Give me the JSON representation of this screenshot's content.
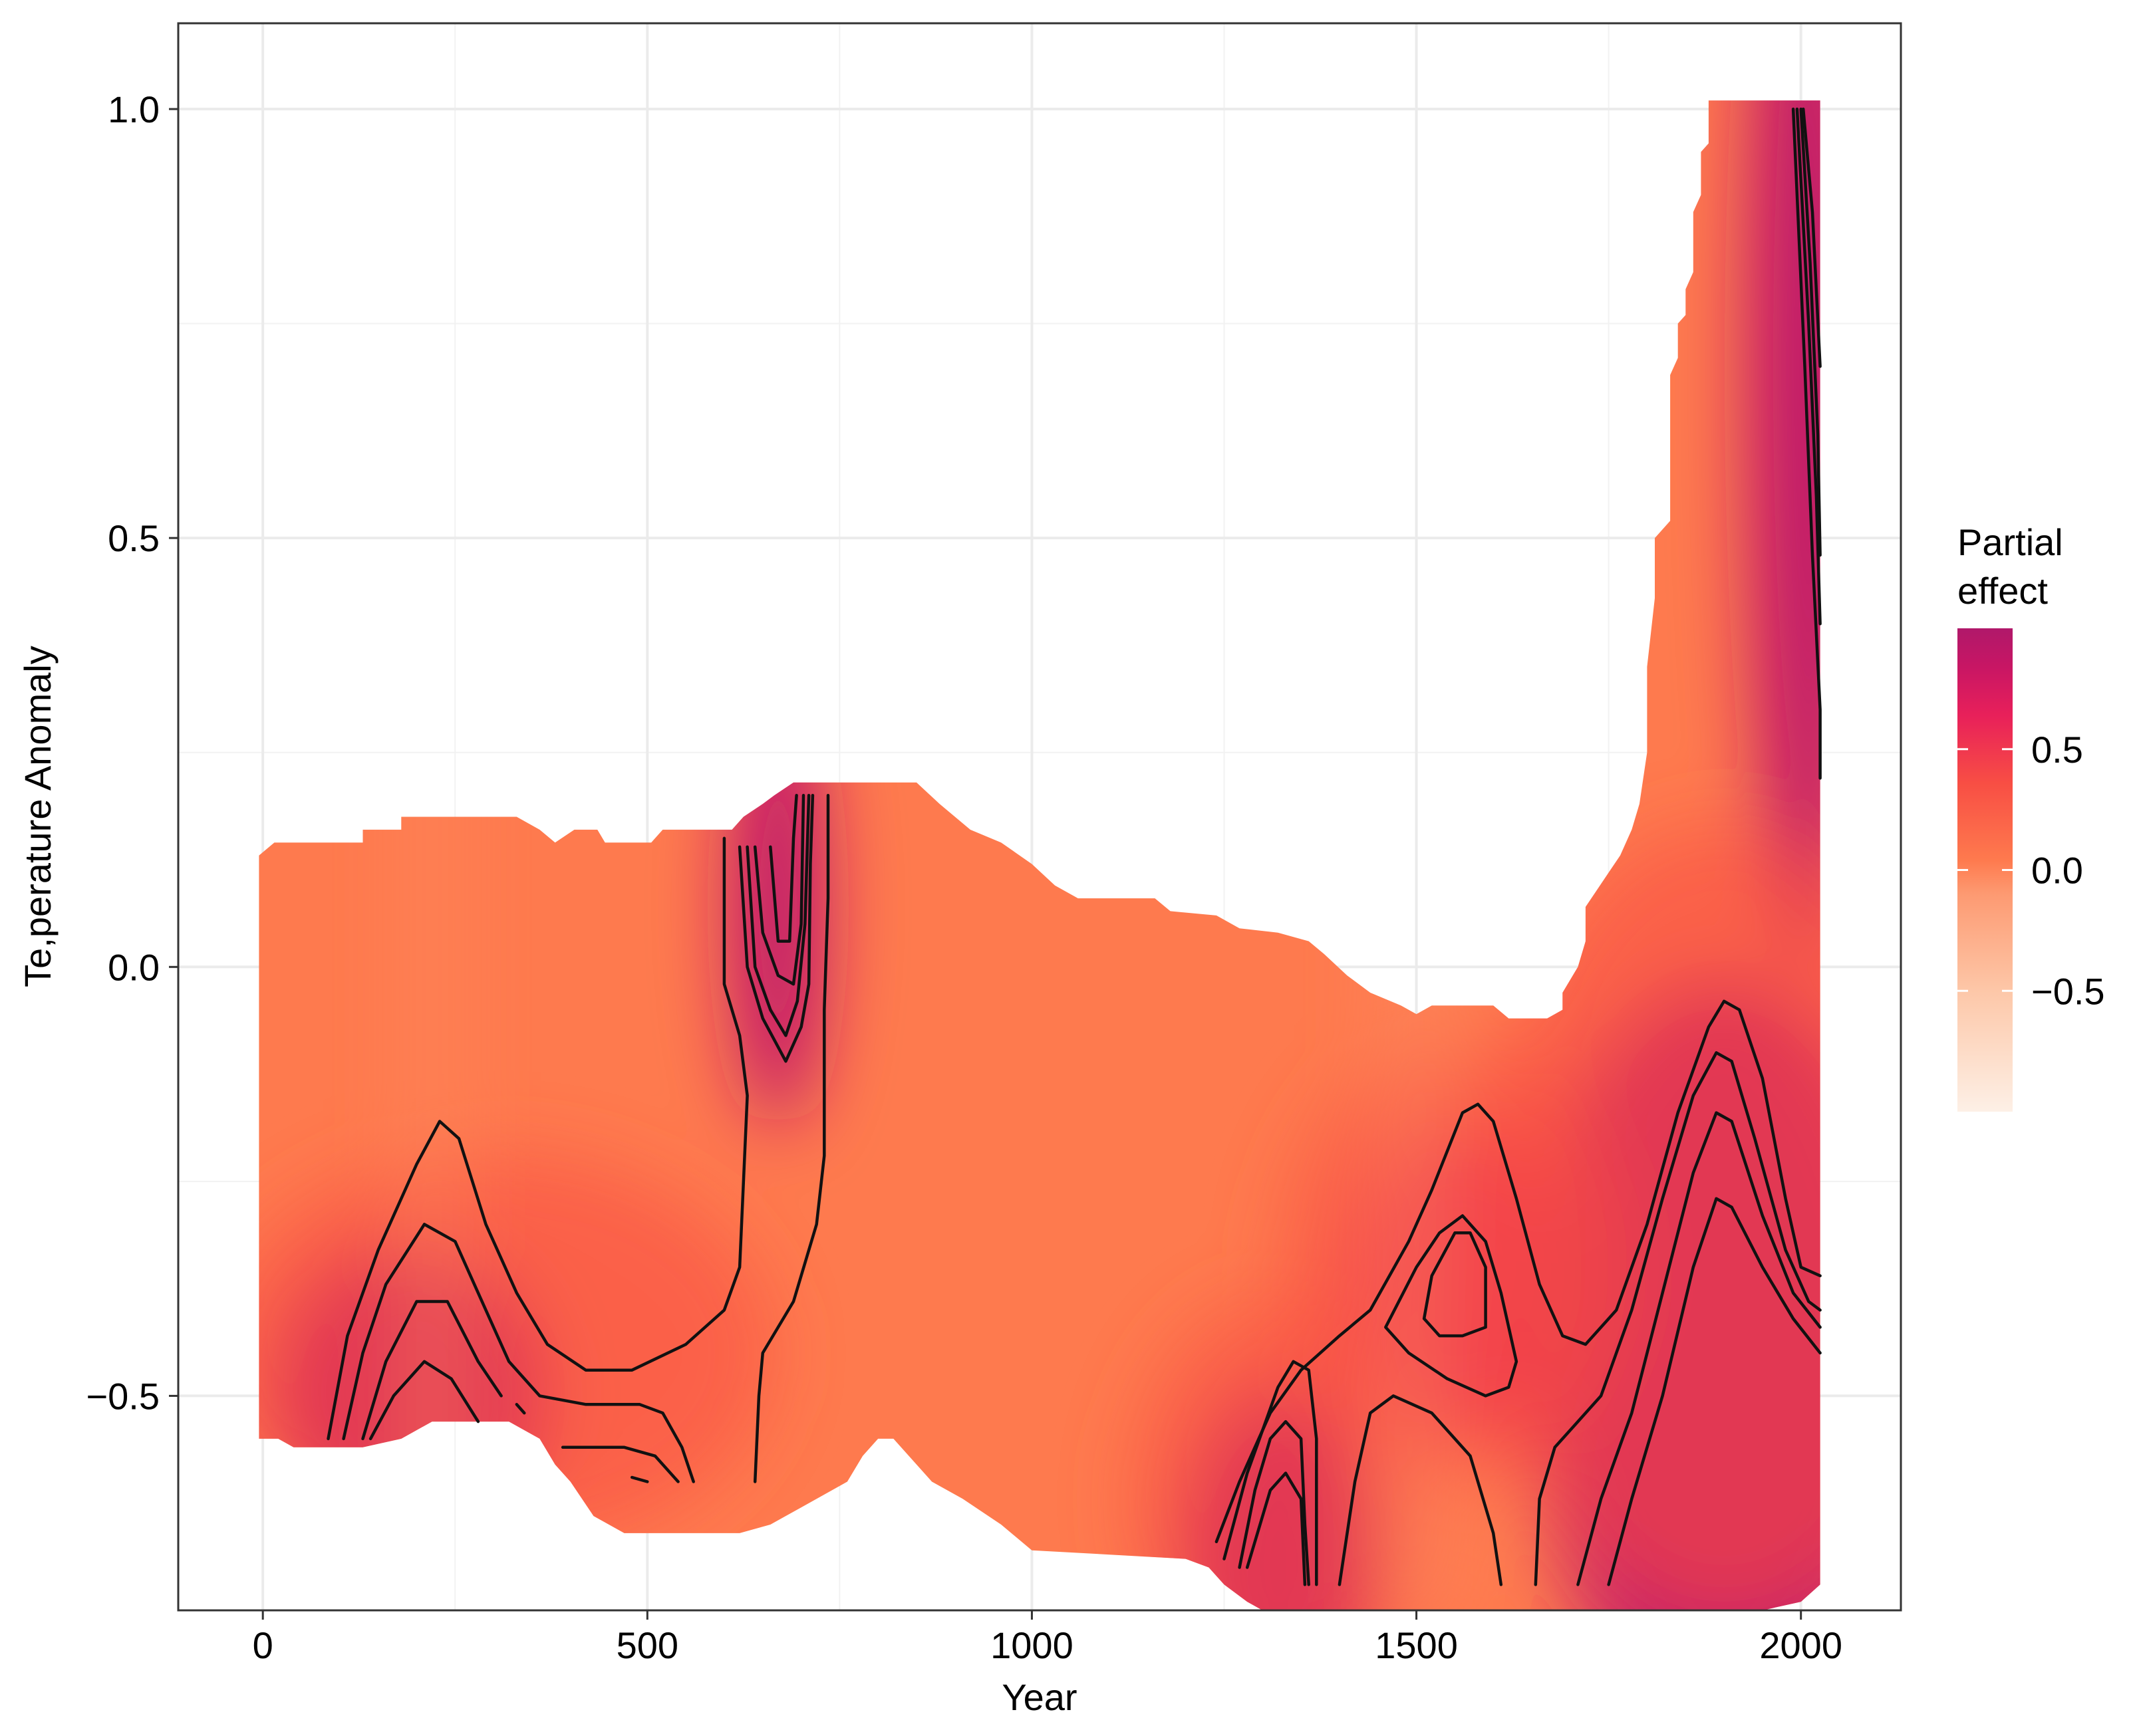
{
  "chart_data": {
    "type": "heatmap",
    "title": "",
    "xlabel": "Year",
    "ylabel": "Te,perature Anomaly",
    "xlim": [
      -110,
      2130
    ],
    "ylim": [
      -0.75,
      1.1
    ],
    "x_ticks": [
      0,
      500,
      1000,
      1500,
      2000
    ],
    "y_ticks": [
      -0.5,
      0.0,
      0.5,
      1.0
    ],
    "x_tick_labels": [
      "0",
      "500",
      "1000",
      "1500",
      "2000"
    ],
    "y_tick_labels": [
      "−0.5",
      "0.0",
      "0.5",
      "1.0"
    ],
    "grid": true,
    "legend": {
      "title": "Partial effect",
      "title_lines": [
        "Partial",
        "effect"
      ],
      "position": "right",
      "range": [
        -1.0,
        1.0
      ],
      "breaks": [
        0.5,
        0.0,
        -0.5
      ],
      "break_labels": [
        "0.5",
        "0.0",
        "−0.5"
      ],
      "colors": [
        "#fdf0e6",
        "#fdc7a8",
        "#fd9a72",
        "#fe7a4e",
        "#f84e44",
        "#e8205a",
        "#c81664",
        "#b0186a"
      ]
    },
    "data_extent": {
      "upper_boundary": [
        [
          -5,
          0.13
        ],
        [
          15,
          0.145
        ],
        [
          130,
          0.145
        ],
        [
          130,
          0.16
        ],
        [
          180,
          0.16
        ],
        [
          180,
          0.175
        ],
        [
          330,
          0.175
        ],
        [
          360,
          0.16
        ],
        [
          380,
          0.145
        ],
        [
          405,
          0.16
        ],
        [
          435,
          0.16
        ],
        [
          445,
          0.145
        ],
        [
          505,
          0.145
        ],
        [
          520,
          0.16
        ],
        [
          610,
          0.16
        ],
        [
          625,
          0.175
        ],
        [
          650,
          0.19
        ],
        [
          665,
          0.2
        ],
        [
          690,
          0.215
        ],
        [
          850,
          0.215
        ],
        [
          880,
          0.19
        ],
        [
          920,
          0.16
        ],
        [
          960,
          0.145
        ],
        [
          1000,
          0.12
        ],
        [
          1030,
          0.095
        ],
        [
          1060,
          0.08
        ],
        [
          1160,
          0.08
        ],
        [
          1180,
          0.065
        ],
        [
          1240,
          0.06
        ],
        [
          1270,
          0.045
        ],
        [
          1320,
          0.04
        ],
        [
          1360,
          0.03
        ],
        [
          1380,
          0.015
        ],
        [
          1410,
          -0.01
        ],
        [
          1440,
          -0.03
        ],
        [
          1480,
          -0.045
        ],
        [
          1500,
          -0.055
        ],
        [
          1520,
          -0.045
        ],
        [
          1600,
          -0.045
        ],
        [
          1620,
          -0.06
        ],
        [
          1670,
          -0.06
        ],
        [
          1690,
          -0.05
        ],
        [
          1690,
          -0.03
        ],
        [
          1710,
          0.0
        ],
        [
          1720,
          0.03
        ],
        [
          1720,
          0.07
        ],
        [
          1750,
          0.11
        ],
        [
          1765,
          0.13
        ],
        [
          1780,
          0.16
        ],
        [
          1790,
          0.19
        ],
        [
          1800,
          0.25
        ],
        [
          1800,
          0.35
        ],
        [
          1810,
          0.43
        ],
        [
          1810,
          0.5
        ],
        [
          1830,
          0.52
        ],
        [
          1830,
          0.69
        ],
        [
          1840,
          0.71
        ],
        [
          1840,
          0.75
        ],
        [
          1850,
          0.76
        ],
        [
          1850,
          0.79
        ],
        [
          1860,
          0.81
        ],
        [
          1860,
          0.88
        ],
        [
          1870,
          0.9
        ],
        [
          1870,
          0.95
        ],
        [
          1880,
          0.96
        ],
        [
          1880,
          1.01
        ],
        [
          2025,
          1.01
        ]
      ],
      "lower_boundary": [
        [
          2025,
          -0.72
        ],
        [
          2000,
          -0.74
        ],
        [
          1950,
          -0.75
        ],
        [
          1300,
          -0.75
        ],
        [
          1280,
          -0.74
        ],
        [
          1250,
          -0.72
        ],
        [
          1230,
          -0.7
        ],
        [
          1200,
          -0.69
        ],
        [
          1000,
          -0.68
        ],
        [
          960,
          -0.65
        ],
        [
          910,
          -0.62
        ],
        [
          870,
          -0.6
        ],
        [
          820,
          -0.55
        ],
        [
          800,
          -0.55
        ],
        [
          780,
          -0.57
        ],
        [
          760,
          -0.6
        ],
        [
          700,
          -0.63
        ],
        [
          680,
          -0.64
        ],
        [
          660,
          -0.65
        ],
        [
          620,
          -0.66
        ],
        [
          470,
          -0.66
        ],
        [
          430,
          -0.64
        ],
        [
          400,
          -0.6
        ],
        [
          380,
          -0.58
        ],
        [
          360,
          -0.55
        ],
        [
          320,
          -0.53
        ],
        [
          220,
          -0.53
        ],
        [
          180,
          -0.55
        ],
        [
          130,
          -0.56
        ],
        [
          40,
          -0.56
        ],
        [
          20,
          -0.55
        ],
        [
          -5,
          -0.55
        ]
      ]
    },
    "high_effect_regions": [
      {
        "center": [
          190,
          -0.5
        ],
        "value": 1.0
      },
      {
        "center": [
          670,
          0.07
        ],
        "value": 1.0
      },
      {
        "center": [
          1550,
          -0.37
        ],
        "value": 0.85
      },
      {
        "center": [
          1320,
          -0.7
        ],
        "value": 1.0
      },
      {
        "center": [
          1900,
          -0.45
        ],
        "value": 1.0
      },
      {
        "center": [
          2010,
          0.7
        ],
        "value": 1.0
      }
    ],
    "contours": [
      [
        [
          85,
          -0.55
        ],
        [
          110,
          -0.43
        ],
        [
          150,
          -0.33
        ],
        [
          200,
          -0.23
        ],
        [
          230,
          -0.18
        ],
        [
          255,
          -0.2
        ],
        [
          290,
          -0.3
        ],
        [
          330,
          -0.38
        ],
        [
          370,
          -0.44
        ],
        [
          420,
          -0.47
        ],
        [
          480,
          -0.47
        ],
        [
          550,
          -0.44
        ],
        [
          600,
          -0.4
        ],
        [
          620,
          -0.35
        ],
        [
          630,
          -0.15
        ],
        [
          620,
          -0.08
        ],
        [
          600,
          -0.02
        ],
        [
          600,
          0.15
        ]
      ],
      [
        [
          105,
          -0.55
        ],
        [
          130,
          -0.45
        ],
        [
          160,
          -0.37
        ],
        [
          210,
          -0.3
        ],
        [
          250,
          -0.32
        ],
        [
          280,
          -0.38
        ],
        [
          320,
          -0.46
        ],
        [
          360,
          -0.5
        ],
        [
          420,
          -0.51
        ],
        [
          490,
          -0.51
        ],
        [
          520,
          -0.52
        ],
        [
          545,
          -0.56
        ],
        [
          560,
          -0.6
        ]
      ],
      [
        [
          130,
          -0.55
        ],
        [
          160,
          -0.46
        ],
        [
          200,
          -0.39
        ],
        [
          240,
          -0.39
        ],
        [
          280,
          -0.46
        ],
        [
          310,
          -0.5
        ]
      ],
      [
        [
          140,
          -0.55
        ],
        [
          170,
          -0.5
        ],
        [
          210,
          -0.46
        ],
        [
          245,
          -0.48
        ],
        [
          280,
          -0.53
        ]
      ],
      [
        [
          330,
          -0.51
        ],
        [
          340,
          -0.52
        ]
      ],
      [
        [
          390,
          -0.56
        ],
        [
          470,
          -0.56
        ],
        [
          510,
          -0.57
        ],
        [
          540,
          -0.6
        ]
      ],
      [
        [
          480,
          -0.595
        ],
        [
          500,
          -0.6
        ]
      ],
      [
        [
          640,
          -0.6
        ],
        [
          645,
          -0.5
        ],
        [
          650,
          -0.45
        ],
        [
          690,
          -0.39
        ],
        [
          720,
          -0.3
        ],
        [
          730,
          -0.22
        ],
        [
          730,
          -0.05
        ],
        [
          735,
          0.08
        ],
        [
          735,
          0.2
        ]
      ],
      [
        [
          620,
          0.14
        ],
        [
          630,
          0.0
        ],
        [
          650,
          -0.06
        ],
        [
          680,
          -0.11
        ],
        [
          700,
          -0.07
        ],
        [
          710,
          -0.02
        ],
        [
          712,
          0.12
        ],
        [
          715,
          0.2
        ]
      ],
      [
        [
          630,
          0.14
        ],
        [
          640,
          0.0
        ],
        [
          660,
          -0.05
        ],
        [
          680,
          -0.08
        ],
        [
          695,
          -0.04
        ],
        [
          705,
          0.05
        ],
        [
          710,
          0.2
        ]
      ],
      [
        [
          640,
          0.14
        ],
        [
          650,
          0.04
        ],
        [
          670,
          -0.01
        ],
        [
          690,
          -0.02
        ],
        [
          700,
          0.05
        ],
        [
          703,
          0.2
        ]
      ],
      [
        [
          660,
          0.14
        ],
        [
          670,
          0.03
        ],
        [
          685,
          0.03
        ],
        [
          690,
          0.15
        ],
        [
          694,
          0.2
        ]
      ],
      [
        [
          1240,
          -0.67
        ],
        [
          1270,
          -0.6
        ],
        [
          1310,
          -0.52
        ],
        [
          1350,
          -0.47
        ],
        [
          1400,
          -0.43
        ],
        [
          1440,
          -0.4
        ],
        [
          1490,
          -0.32
        ],
        [
          1520,
          -0.26
        ],
        [
          1560,
          -0.17
        ],
        [
          1580,
          -0.16
        ],
        [
          1600,
          -0.18
        ],
        [
          1630,
          -0.27
        ],
        [
          1660,
          -0.37
        ],
        [
          1690,
          -0.43
        ],
        [
          1720,
          -0.44
        ],
        [
          1760,
          -0.4
        ],
        [
          1800,
          -0.3
        ],
        [
          1840,
          -0.17
        ],
        [
          1880,
          -0.07
        ],
        [
          1900,
          -0.04
        ],
        [
          1920,
          -0.05
        ],
        [
          1950,
          -0.13
        ],
        [
          1980,
          -0.27
        ],
        [
          2000,
          -0.35
        ],
        [
          2025,
          -0.36
        ]
      ],
      [
        [
          1250,
          -0.69
        ],
        [
          1280,
          -0.59
        ],
        [
          1320,
          -0.49
        ],
        [
          1340,
          -0.46
        ],
        [
          1360,
          -0.47
        ],
        [
          1370,
          -0.55
        ],
        [
          1370,
          -0.72
        ]
      ],
      [
        [
          1270,
          -0.7
        ],
        [
          1290,
          -0.61
        ],
        [
          1310,
          -0.55
        ],
        [
          1330,
          -0.53
        ],
        [
          1350,
          -0.55
        ],
        [
          1355,
          -0.65
        ],
        [
          1360,
          -0.72
        ]
      ],
      [
        [
          1280,
          -0.7
        ],
        [
          1310,
          -0.61
        ],
        [
          1330,
          -0.59
        ],
        [
          1350,
          -0.62
        ],
        [
          1355,
          -0.72
        ]
      ],
      [
        [
          1400,
          -0.72
        ],
        [
          1420,
          -0.6
        ],
        [
          1440,
          -0.52
        ],
        [
          1470,
          -0.5
        ],
        [
          1520,
          -0.52
        ],
        [
          1570,
          -0.57
        ],
        [
          1600,
          -0.66
        ],
        [
          1610,
          -0.72
        ]
      ],
      [
        [
          1460,
          -0.42
        ],
        [
          1500,
          -0.35
        ],
        [
          1530,
          -0.31
        ],
        [
          1560,
          -0.29
        ],
        [
          1590,
          -0.32
        ],
        [
          1610,
          -0.38
        ],
        [
          1630,
          -0.46
        ],
        [
          1620,
          -0.49
        ],
        [
          1590,
          -0.5
        ],
        [
          1540,
          -0.48
        ],
        [
          1490,
          -0.45
        ],
        [
          1460,
          -0.42
        ]
      ],
      [
        [
          1510,
          -0.41
        ],
        [
          1520,
          -0.36
        ],
        [
          1550,
          -0.31
        ],
        [
          1570,
          -0.31
        ],
        [
          1590,
          -0.35
        ],
        [
          1590,
          -0.42
        ],
        [
          1560,
          -0.43
        ],
        [
          1530,
          -0.43
        ],
        [
          1510,
          -0.41
        ]
      ],
      [
        [
          1655,
          -0.72
        ],
        [
          1660,
          -0.62
        ],
        [
          1680,
          -0.56
        ],
        [
          1710,
          -0.53
        ],
        [
          1740,
          -0.5
        ],
        [
          1780,
          -0.4
        ],
        [
          1820,
          -0.27
        ],
        [
          1860,
          -0.15
        ],
        [
          1890,
          -0.1
        ],
        [
          1910,
          -0.11
        ],
        [
          1940,
          -0.2
        ],
        [
          1980,
          -0.33
        ],
        [
          2010,
          -0.39
        ],
        [
          2025,
          -0.4
        ]
      ],
      [
        [
          1710,
          -0.72
        ],
        [
          1740,
          -0.62
        ],
        [
          1780,
          -0.52
        ],
        [
          1820,
          -0.38
        ],
        [
          1860,
          -0.24
        ],
        [
          1890,
          -0.17
        ],
        [
          1910,
          -0.18
        ],
        [
          1950,
          -0.29
        ],
        [
          1990,
          -0.38
        ],
        [
          2025,
          -0.42
        ]
      ],
      [
        [
          1750,
          -0.72
        ],
        [
          1780,
          -0.62
        ],
        [
          1820,
          -0.5
        ],
        [
          1860,
          -0.35
        ],
        [
          1890,
          -0.27
        ],
        [
          1910,
          -0.28
        ],
        [
          1950,
          -0.35
        ],
        [
          1990,
          -0.41
        ],
        [
          2025,
          -0.45
        ]
      ],
      [
        [
          1990,
          1.0
        ],
        [
          2005,
          0.7
        ],
        [
          2015,
          0.48
        ],
        [
          2025,
          0.3
        ],
        [
          2025,
          0.22
        ]
      ],
      [
        [
          1995,
          1.0
        ],
        [
          2010,
          0.75
        ],
        [
          2020,
          0.55
        ],
        [
          2025,
          0.4
        ]
      ],
      [
        [
          2000,
          1.0
        ],
        [
          2012,
          0.82
        ],
        [
          2022,
          0.62
        ],
        [
          2025,
          0.48
        ]
      ],
      [
        [
          2003,
          1.0
        ],
        [
          2015,
          0.88
        ],
        [
          2025,
          0.7
        ]
      ]
    ]
  }
}
